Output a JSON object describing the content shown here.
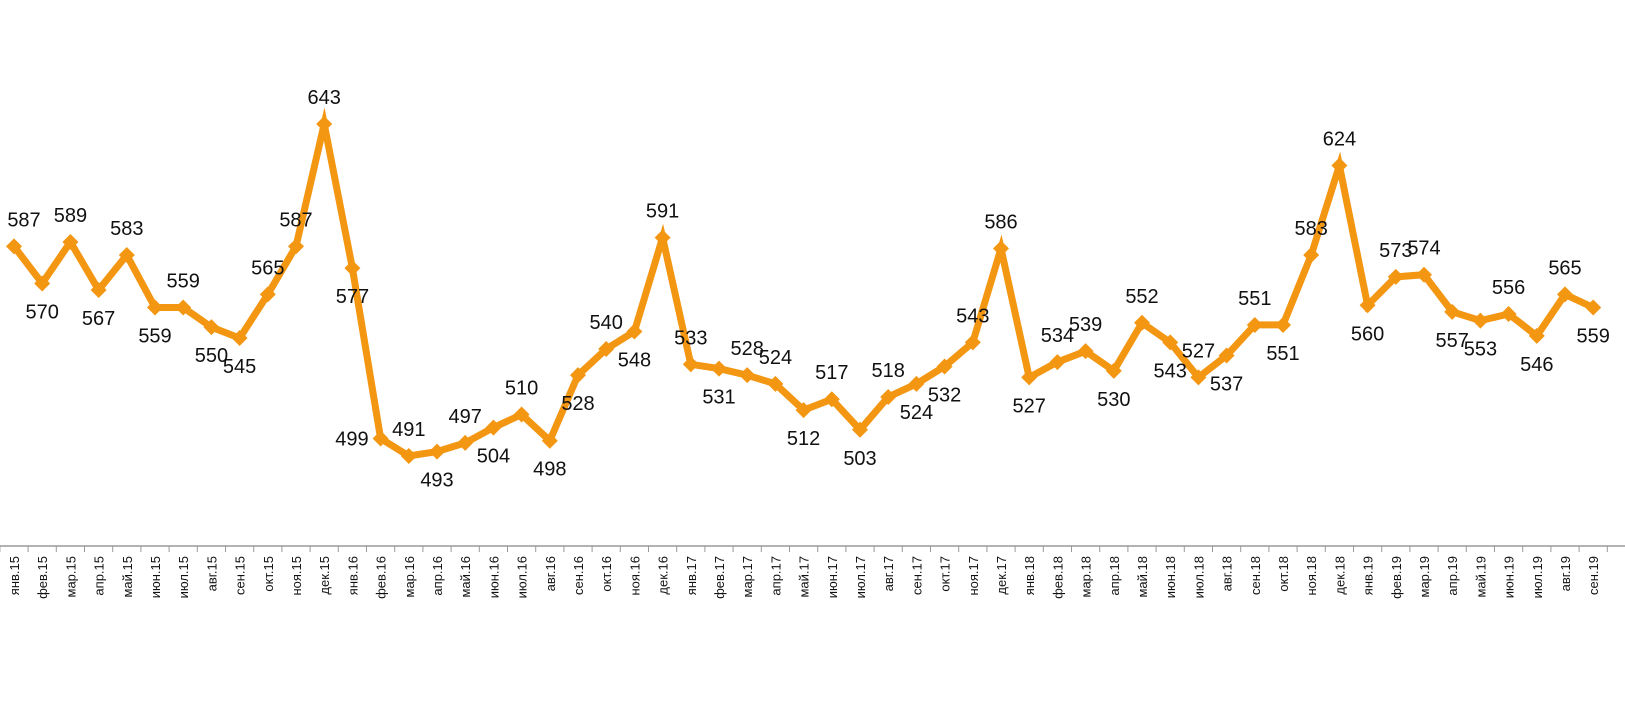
{
  "chart_data": {
    "type": "line",
    "title": "",
    "xlabel": "",
    "ylabel": "",
    "ylim": [
      480,
      660
    ],
    "grid": false,
    "legend": "none",
    "line_color": "#F39612",
    "categories": [
      "янв.15",
      "фев.15",
      "мар.15",
      "апр.15",
      "май.15",
      "июн.15",
      "июл.15",
      "авг.15",
      "сен.15",
      "окт.15",
      "ноя.15",
      "дек.15",
      "янв.16",
      "фев.16",
      "мар.16",
      "апр.16",
      "май.16",
      "июн.16",
      "июл.16",
      "авг.16",
      "сен.16",
      "окт.16",
      "ноя.16",
      "дек.16",
      "янв.17",
      "фев.17",
      "мар.17",
      "апр.17",
      "май.17",
      "июн.17",
      "июл.17",
      "авг.17",
      "сен.17",
      "окт.17",
      "ноя.17",
      "дек.17",
      "янв.18",
      "фев.18",
      "мар.18",
      "апр.18",
      "май.18",
      "июн.18",
      "июл.18",
      "авг.18",
      "сен.18",
      "окт.18",
      "ноя.18",
      "дек.18",
      "янв.19",
      "фев.19",
      "мар.19",
      "апр.19",
      "май.19",
      "июн.19",
      "июл.19",
      "авг.19",
      "сен.19"
    ],
    "values": [
      587,
      570,
      589,
      567,
      583,
      559,
      559,
      550,
      545,
      565,
      587,
      643,
      577,
      499,
      491,
      493,
      497,
      504,
      510,
      498,
      528,
      540,
      548,
      591,
      533,
      531,
      528,
      524,
      512,
      517,
      503,
      518,
      524,
      532,
      543,
      586,
      527,
      534,
      539,
      530,
      552,
      543,
      527,
      537,
      551,
      551,
      583,
      624,
      560,
      573,
      574,
      557,
      553,
      556,
      546,
      565,
      559
    ],
    "label_positions": [
      "above",
      "below",
      "above",
      "below",
      "above",
      "below",
      "above",
      "below",
      "below",
      "above",
      "above",
      "above",
      "below",
      "left",
      "above",
      "below",
      "above",
      "below",
      "above",
      "below",
      "below",
      "above",
      "below",
      "above",
      "above",
      "below",
      "above",
      "above",
      "below",
      "above",
      "below",
      "above",
      "below",
      "below",
      "above",
      "above",
      "below",
      "above",
      "above",
      "below",
      "above",
      "below",
      "above",
      "below",
      "above",
      "below",
      "above",
      "above",
      "below",
      "above",
      "above",
      "below",
      "below",
      "above",
      "below",
      "above",
      "below"
    ]
  }
}
